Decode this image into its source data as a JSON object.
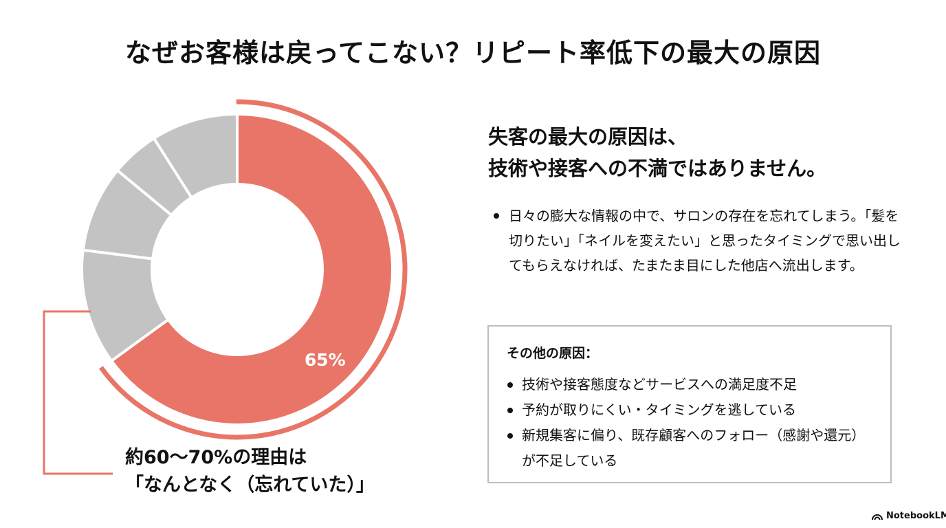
{
  "page": {
    "title": "なぜお客様は戻ってこない？リピート率低下の最大の原因"
  },
  "chart_data": {
    "type": "pie",
    "style": "donut",
    "title": "",
    "slices": [
      {
        "value": 65,
        "label": "65%",
        "color": "#e87567"
      },
      {
        "value": 12,
        "label": "",
        "color": "#c3c3c3"
      },
      {
        "value": 9,
        "label": "",
        "color": "#c3c3c3"
      },
      {
        "value": 5,
        "label": "",
        "color": "#c3c3c3"
      },
      {
        "value": 9,
        "label": "",
        "color": "#c3c3c3"
      }
    ],
    "highlight_color": "#e87567",
    "callout": {
      "line1": "約60〜70%の理由は",
      "line2": "「なんとなく（忘れていた）」"
    }
  },
  "right_panel": {
    "headline_line1": "失客の最大の原因は、",
    "headline_line2": "技術や接客への不満ではありません。",
    "bullets": [
      "日々の膨大な情報の中で、サロンの存在を忘れてしまう。「髪を切りたい」「ネイルを変えたい」と思ったタイミングで思い出してもらえなければ、たまたま目にした他店へ流出します。"
    ],
    "other_causes": {
      "title": "その他の原因：",
      "items": [
        "技術や接客態度などサービスへの満足度不足",
        "予約が取りにくい・タイミングを逃している",
        "新規集客に偏り、既存顧客へのフォロー（感謝や還元）が不足している"
      ]
    }
  },
  "branding": {
    "label": "NotebookLM",
    "icon": "notebooklm-logo-icon"
  }
}
